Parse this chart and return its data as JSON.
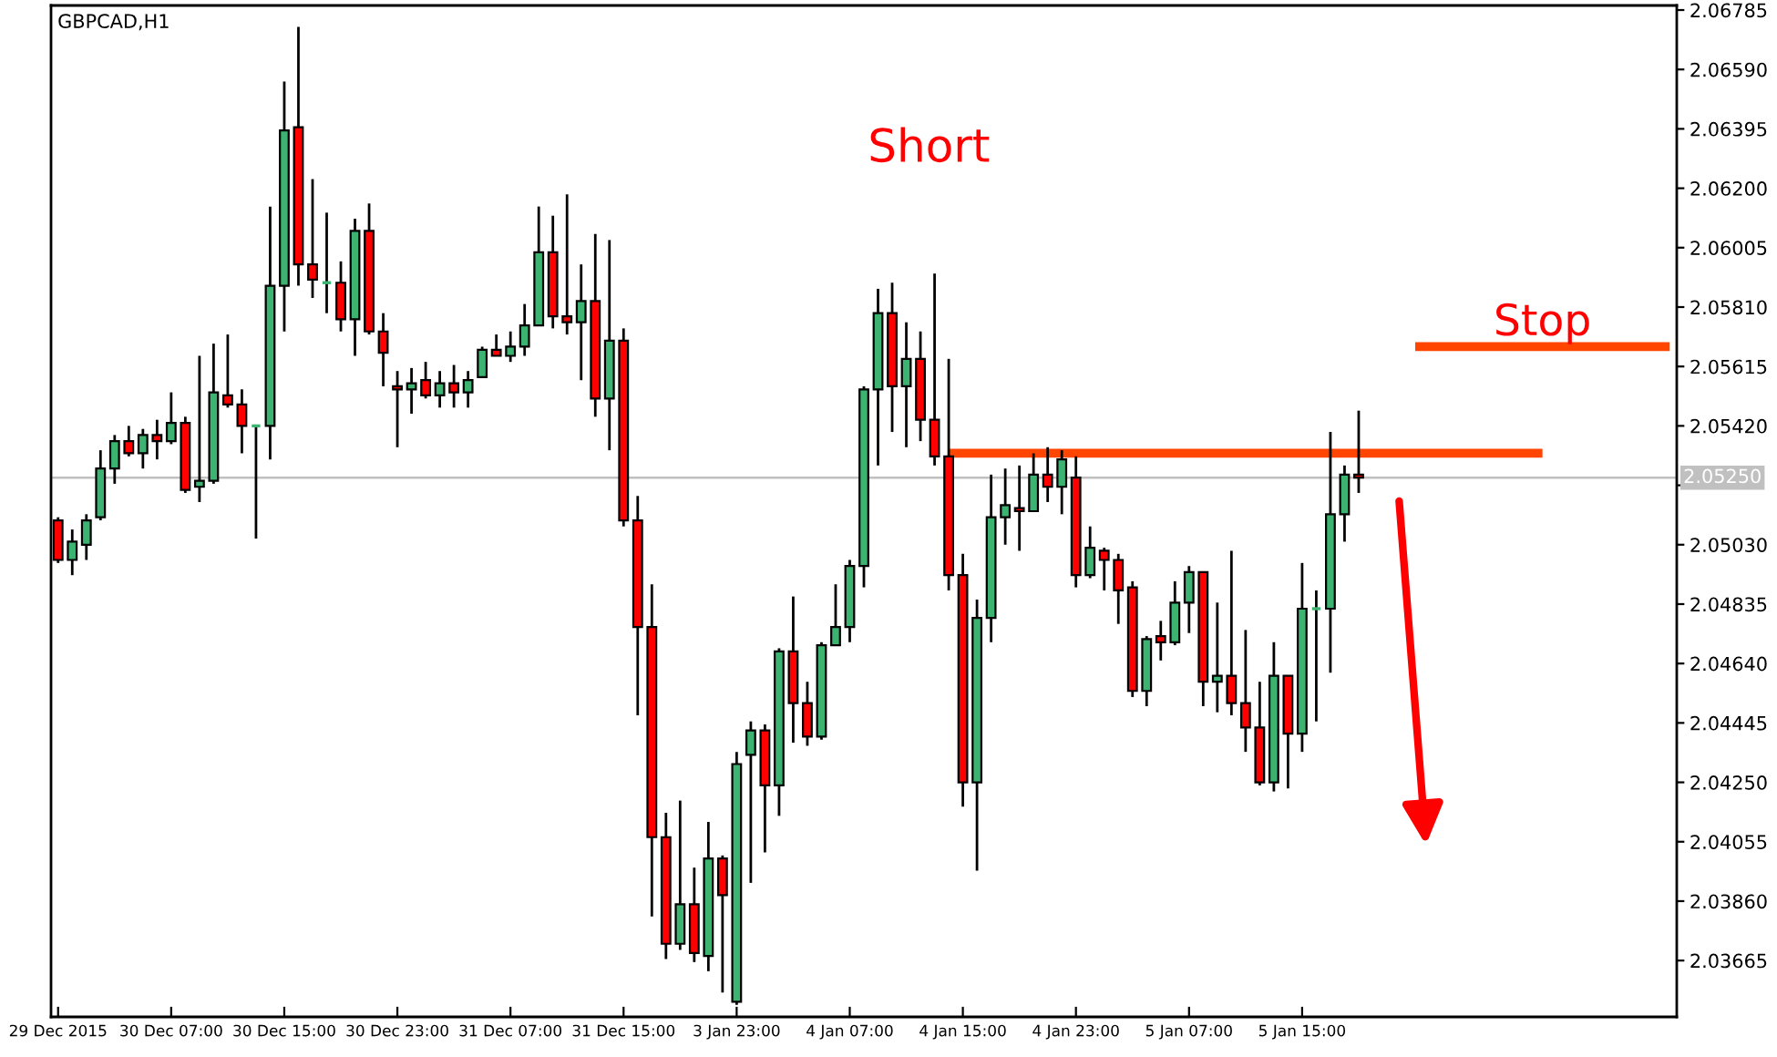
{
  "chart_data": {
    "type": "candlestick",
    "title": "GBPCAD,H1",
    "categories": [
      "29 Dec 2015",
      null,
      null,
      null,
      null,
      null,
      null,
      null,
      "30 Dec 07:00",
      null,
      null,
      null,
      null,
      null,
      null,
      null,
      "30 Dec 15:00",
      null,
      null,
      null,
      null,
      null,
      null,
      null,
      "30 Dec 23:00",
      null,
      null,
      null,
      null,
      null,
      null,
      null,
      "31 Dec 07:00",
      null,
      null,
      null,
      null,
      null,
      null,
      null,
      "31 Dec 15:00",
      null,
      null,
      null,
      null,
      null,
      null,
      null,
      "3 Jan 23:00",
      null,
      null,
      null,
      null,
      null,
      null,
      null,
      "4 Jan 07:00",
      null,
      null,
      null,
      null,
      null,
      null,
      null,
      "4 Jan 15:00",
      null,
      null,
      null,
      null,
      null,
      null,
      null,
      "4 Jan 23:00",
      null,
      null,
      null,
      null,
      null,
      null,
      null,
      "5 Jan 07:00",
      null,
      null,
      null,
      null,
      null,
      null,
      null,
      "5 Jan 15:00",
      null,
      null,
      null,
      null,
      null,
      null,
      null,
      null,
      null,
      null,
      null,
      null,
      null,
      null,
      null,
      null,
      null,
      null,
      null,
      null,
      null,
      null,
      null,
      null,
      null,
      null
    ],
    "series": [
      {
        "type": "candlestick",
        "ohlc": [
          [
            2.0511,
            2.0512,
            2.0497,
            2.0498
          ],
          [
            2.0498,
            2.0508,
            2.0493,
            2.0504
          ],
          [
            2.0503,
            2.0513,
            2.0498,
            2.0511
          ],
          [
            2.0512,
            2.0534,
            2.0511,
            2.0528
          ],
          [
            2.0528,
            2.0539,
            2.0523,
            2.0537
          ],
          [
            2.0537,
            2.0542,
            2.0532,
            2.0533
          ],
          [
            2.0533,
            2.0541,
            2.0528,
            2.0539
          ],
          [
            2.0539,
            2.0544,
            2.0531,
            2.0537
          ],
          [
            2.0537,
            2.0553,
            2.0536,
            2.0543
          ],
          [
            2.0543,
            2.0545,
            2.052,
            2.0521
          ],
          [
            2.0522,
            2.0565,
            2.0517,
            2.0524
          ],
          [
            2.0524,
            2.0569,
            2.0523,
            2.0553
          ],
          [
            2.0552,
            2.0572,
            2.0548,
            2.0549
          ],
          [
            2.0549,
            2.0554,
            2.0533,
            2.0542
          ],
          [
            2.0542,
            2.0542,
            2.0505,
            2.0542
          ],
          [
            2.0542,
            2.0614,
            2.0531,
            2.0588
          ],
          [
            2.0588,
            2.0655,
            2.0573,
            2.0639
          ],
          [
            2.064,
            2.0673,
            2.0588,
            2.0595
          ],
          [
            2.0595,
            2.0623,
            2.0584,
            2.059
          ],
          [
            2.0589,
            2.0612,
            2.0579,
            2.0589
          ],
          [
            2.0589,
            2.0596,
            2.0573,
            2.0577
          ],
          [
            2.0577,
            2.061,
            2.0565,
            2.0606
          ],
          [
            2.0606,
            2.0615,
            2.0572,
            2.0573
          ],
          [
            2.0573,
            2.0579,
            2.0555,
            2.0566
          ],
          [
            2.0555,
            2.056,
            2.0535,
            2.0554
          ],
          [
            2.0554,
            2.0561,
            2.0546,
            2.0556
          ],
          [
            2.0557,
            2.0563,
            2.0551,
            2.0552
          ],
          [
            2.0552,
            2.056,
            2.0548,
            2.0556
          ],
          [
            2.0556,
            2.0562,
            2.0548,
            2.0553
          ],
          [
            2.0553,
            2.056,
            2.0548,
            2.0557
          ],
          [
            2.0558,
            2.0568,
            2.0558,
            2.0567
          ],
          [
            2.0567,
            2.0572,
            2.0565,
            2.0565
          ],
          [
            2.0565,
            2.0573,
            2.0563,
            2.0568
          ],
          [
            2.0568,
            2.0582,
            2.0565,
            2.0575
          ],
          [
            2.0575,
            2.0614,
            2.0575,
            2.0599
          ],
          [
            2.0599,
            2.0611,
            2.0574,
            2.0578
          ],
          [
            2.0578,
            2.0618,
            2.0572,
            2.0576
          ],
          [
            2.0576,
            2.0595,
            2.0557,
            2.0583
          ],
          [
            2.0583,
            2.0605,
            2.0545,
            2.0551
          ],
          [
            2.0551,
            2.0603,
            2.0534,
            2.057
          ],
          [
            2.057,
            2.0574,
            2.0509,
            2.0511
          ],
          [
            2.0511,
            2.0519,
            2.0447,
            2.0476
          ],
          [
            2.0476,
            2.049,
            2.0381,
            2.0407
          ],
          [
            2.0407,
            2.0415,
            2.0367,
            2.0372
          ],
          [
            2.0372,
            2.0419,
            2.037,
            2.0385
          ],
          [
            2.0385,
            2.0397,
            2.0366,
            2.0369
          ],
          [
            2.0368,
            2.0412,
            2.0363,
            2.04
          ],
          [
            2.04,
            2.0401,
            2.0356,
            2.0388
          ],
          [
            2.0353,
            2.0435,
            2.0352,
            2.0431
          ],
          [
            2.0434,
            2.0445,
            2.0392,
            2.0442
          ],
          [
            2.0442,
            2.0444,
            2.0402,
            2.0424
          ],
          [
            2.0424,
            2.0469,
            2.0414,
            2.0468
          ],
          [
            2.0468,
            2.0486,
            2.0438,
            2.0451
          ],
          [
            2.0451,
            2.0458,
            2.0437,
            2.044
          ],
          [
            2.044,
            2.0471,
            2.0439,
            2.047
          ],
          [
            2.047,
            2.049,
            2.047,
            2.0476
          ],
          [
            2.0476,
            2.0498,
            2.0471,
            2.0496
          ],
          [
            2.0496,
            2.0555,
            2.0489,
            2.0554
          ],
          [
            2.0554,
            2.0587,
            2.0529,
            2.0579
          ],
          [
            2.0579,
            2.0589,
            2.054,
            2.0555
          ],
          [
            2.0555,
            2.0576,
            2.0535,
            2.0564
          ],
          [
            2.0564,
            2.0573,
            2.0537,
            2.0544
          ],
          [
            2.0544,
            2.0592,
            2.0529,
            2.0532
          ],
          [
            2.0532,
            2.0564,
            2.0488,
            2.0493
          ],
          [
            2.0493,
            2.05,
            2.0417,
            2.0425
          ],
          [
            2.0425,
            2.0485,
            2.0396,
            2.0479
          ],
          [
            2.0479,
            2.0526,
            2.0471,
            2.0512
          ],
          [
            2.0512,
            2.0528,
            2.0503,
            2.0516
          ],
          [
            2.0515,
            2.0529,
            2.0501,
            2.0514
          ],
          [
            2.0514,
            2.0533,
            2.0514,
            2.0526
          ],
          [
            2.0526,
            2.0535,
            2.0517,
            2.0522
          ],
          [
            2.0522,
            2.0534,
            2.0513,
            2.0531
          ],
          [
            2.0525,
            2.0532,
            2.0489,
            2.0493
          ],
          [
            2.0493,
            2.0509,
            2.0492,
            2.0502
          ],
          [
            2.0501,
            2.0502,
            2.0488,
            2.0498
          ],
          [
            2.0498,
            2.05,
            2.0477,
            2.0488
          ],
          [
            2.0489,
            2.0491,
            2.0453,
            2.0455
          ],
          [
            2.0455,
            2.0473,
            2.045,
            2.0472
          ],
          [
            2.0473,
            2.0478,
            2.0465,
            2.0471
          ],
          [
            2.0471,
            2.0491,
            2.047,
            2.0484
          ],
          [
            2.0484,
            2.0496,
            2.0474,
            2.0494
          ],
          [
            2.0494,
            2.0494,
            2.045,
            2.0458
          ],
          [
            2.0458,
            2.0484,
            2.0448,
            2.046
          ],
          [
            2.046,
            2.0501,
            2.0447,
            2.0451
          ],
          [
            2.0451,
            2.0475,
            2.0435,
            2.0443
          ],
          [
            2.0443,
            2.0458,
            2.0424,
            2.0425
          ],
          [
            2.0425,
            2.0471,
            2.0422,
            2.046
          ],
          [
            2.046,
            2.046,
            2.0423,
            2.0441
          ],
          [
            2.0441,
            2.0497,
            2.0435,
            2.0482
          ],
          [
            2.0482,
            2.0488,
            2.0445,
            2.0482
          ],
          [
            2.0482,
            2.054,
            2.0461,
            2.0513
          ],
          [
            2.0513,
            2.0529,
            2.0504,
            2.0526
          ],
          [
            2.0526,
            2.0547,
            2.052,
            2.0525
          ],
          null,
          null,
          null,
          null,
          null,
          null,
          null,
          null,
          null,
          null,
          null,
          null,
          null,
          null,
          null,
          null,
          null,
          null,
          null,
          null,
          null,
          null
        ],
        "colors": [
          "#ff0000",
          "#3cb371",
          "#3cb371",
          "#3cb371",
          "#3cb371",
          "#ff0000",
          "#3cb371",
          "#ff0000",
          "#3cb371",
          "#ff0000",
          "#3cb371",
          "#3cb371",
          "#ff0000",
          "#ff0000",
          "#3cb371",
          "#3cb371",
          "#3cb371",
          "#ff0000",
          "#ff0000",
          "#3cb371",
          "#ff0000",
          "#3cb371",
          "#ff0000",
          "#ff0000",
          "#ff0000",
          "#3cb371",
          "#ff0000",
          "#3cb371",
          "#ff0000",
          "#3cb371",
          "#3cb371",
          "#ff0000",
          "#3cb371",
          "#3cb371",
          "#3cb371",
          "#ff0000",
          "#ff0000",
          "#3cb371",
          "#ff0000",
          "#3cb371",
          "#ff0000",
          "#ff0000",
          "#ff0000",
          "#ff0000",
          "#3cb371",
          "#ff0000",
          "#3cb371",
          "#ff0000",
          "#3cb371",
          "#3cb371",
          "#ff0000",
          "#3cb371",
          "#ff0000",
          "#ff0000",
          "#3cb371",
          "#3cb371",
          "#3cb371",
          "#3cb371",
          "#3cb371",
          "#ff0000",
          "#3cb371",
          "#ff0000",
          "#ff0000",
          "#ff0000",
          "#ff0000",
          "#3cb371",
          "#3cb371",
          "#3cb371",
          "#ff0000",
          "#3cb371",
          "#ff0000",
          "#3cb371",
          "#ff0000",
          "#3cb371",
          "#ff0000",
          "#ff0000",
          "#ff0000",
          "#3cb371",
          "#ff0000",
          "#3cb371",
          "#3cb371",
          "#ff0000",
          "#3cb371",
          "#ff0000",
          "#ff0000",
          "#ff0000",
          "#3cb371",
          "#ff0000",
          "#3cb371",
          "#3cb371",
          "#3cb371",
          "#3cb371",
          "#ff0000",
          null,
          null,
          null,
          null,
          null,
          null,
          null,
          null,
          null,
          null,
          null,
          null,
          null,
          null,
          null,
          null,
          null,
          null,
          null,
          null,
          null,
          null
        ]
      },
      {
        "type": "line",
        "color": "#ff4500",
        "values": [
          null,
          null,
          null,
          null,
          null,
          null,
          null,
          null,
          null,
          null,
          null,
          null,
          null,
          null,
          null,
          null,
          null,
          null,
          null,
          null,
          null,
          null,
          null,
          null,
          null,
          null,
          null,
          null,
          null,
          null,
          null,
          null,
          null,
          null,
          null,
          null,
          null,
          null,
          null,
          null,
          null,
          null,
          null,
          null,
          null,
          null,
          null,
          null,
          null,
          null,
          null,
          null,
          null,
          null,
          null,
          null,
          null,
          null,
          null,
          null,
          null,
          null,
          null,
          2.0533,
          2.0533,
          2.0533,
          2.0533,
          2.0533,
          2.0533,
          2.0533,
          2.0533,
          2.0533,
          2.0533,
          2.0533,
          2.0533,
          2.0533,
          2.0533,
          2.0533,
          2.0533,
          2.0533,
          2.0533,
          2.0533,
          2.0533,
          2.0533,
          2.0533,
          2.0533,
          2.0533,
          2.0533,
          2.0533,
          2.0533,
          2.0533,
          2.0533,
          2.0533,
          2.0533,
          2.0533,
          2.0533,
          2.0533,
          2.0533,
          2.0533,
          2.0533,
          2.0533,
          2.0533,
          2.0533,
          2.0533,
          2.0533,
          2.0533,
          null,
          null,
          null,
          null,
          null,
          null,
          null,
          null,
          null
        ]
      },
      {
        "type": "line",
        "name": "Stop",
        "color": "#ff4500",
        "values": [
          null,
          null,
          null,
          null,
          null,
          null,
          null,
          null,
          null,
          null,
          null,
          null,
          null,
          null,
          null,
          null,
          null,
          null,
          null,
          null,
          null,
          null,
          null,
          null,
          null,
          null,
          null,
          null,
          null,
          null,
          null,
          null,
          null,
          null,
          null,
          null,
          null,
          null,
          null,
          null,
          null,
          null,
          null,
          null,
          null,
          null,
          null,
          null,
          null,
          null,
          null,
          null,
          null,
          null,
          null,
          null,
          null,
          null,
          null,
          null,
          null,
          null,
          null,
          null,
          null,
          null,
          null,
          null,
          null,
          null,
          null,
          null,
          null,
          null,
          null,
          null,
          null,
          null,
          null,
          null,
          null,
          null,
          null,
          null,
          null,
          null,
          null,
          null,
          null,
          null,
          null,
          null,
          null,
          null,
          null,
          null,
          2.0568,
          2.0568,
          2.0568,
          2.0568,
          2.0568,
          2.0568,
          2.0568,
          2.0568,
          2.0568,
          2.0568,
          2.0568,
          2.0568,
          2.0568,
          2.0568,
          2.0568,
          2.0568,
          2.0568,
          2.0568,
          2.0568
        ]
      }
    ],
    "ylim": [
      2.0348,
      2.068
    ],
    "yticks": [
      2.03665,
      {
        "value": 2.0386,
        "label": "2.03860"
      },
      2.04055,
      {
        "value": 2.0425,
        "label": "2.04250"
      },
      2.04445,
      {
        "value": 2.0464,
        "label": "2.04640"
      },
      2.04835,
      {
        "value": 2.0503,
        "label": "2.05030"
      },
      {
        "value": 2.05225,
        "label": null
      },
      {
        "value": 2.0542,
        "label": "2.05420"
      },
      2.05615,
      {
        "value": 2.0581,
        "label": "2.05810"
      },
      2.06005,
      {
        "value": 2.062,
        "label": "2.06200"
      },
      2.06395,
      {
        "value": 2.0659,
        "label": "2.06590"
      },
      2.06785
    ],
    "ref_lines": [
      {
        "axis": "y",
        "value": 2.0525,
        "label": "2.05250",
        "color": "#c0c0c0"
      }
    ],
    "annotations": [
      "Short"
    ]
  }
}
